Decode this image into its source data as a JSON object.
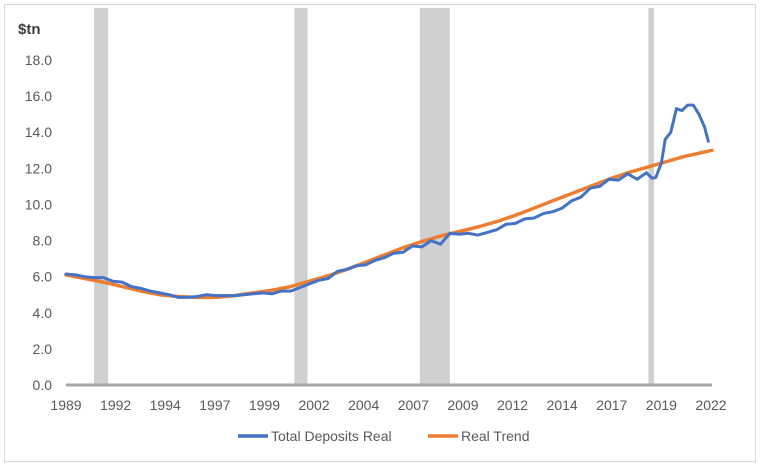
{
  "chart_data": {
    "type": "line",
    "ylabel": "$tn",
    "ylim": [
      0,
      18
    ],
    "yticks": [
      "0.0",
      "2.0",
      "4.0",
      "6.0",
      "8.0",
      "10.0",
      "12.0",
      "14.0",
      "16.0",
      "18.0"
    ],
    "xlim": [
      1989.0,
      2023.5
    ],
    "xticks": [
      "1989",
      "1992",
      "1994",
      "1997",
      "1999",
      "2002",
      "2004",
      "2007",
      "2009",
      "2012",
      "2014",
      "2017",
      "2019",
      "2022"
    ],
    "grid": false,
    "legend_position": "bottom",
    "recessions": [
      [
        1990.5,
        1991.25
      ],
      [
        2001.2,
        2001.9
      ],
      [
        2007.9,
        2009.5
      ],
      [
        2020.1,
        2020.4
      ]
    ],
    "series": [
      {
        "name": "Total Deposits Real",
        "color": "#4472C4",
        "points": [
          [
            1989.0,
            6.15
          ],
          [
            1989.5,
            6.1
          ],
          [
            1990.0,
            6.0
          ],
          [
            1990.5,
            5.95
          ],
          [
            1991.0,
            5.95
          ],
          [
            1991.5,
            5.75
          ],
          [
            1992.0,
            5.7
          ],
          [
            1992.5,
            5.45
          ],
          [
            1993.0,
            5.35
          ],
          [
            1993.5,
            5.2
          ],
          [
            1994.0,
            5.1
          ],
          [
            1994.5,
            5.0
          ],
          [
            1995.0,
            4.85
          ],
          [
            1995.5,
            4.85
          ],
          [
            1996.0,
            4.9
          ],
          [
            1996.5,
            5.0
          ],
          [
            1997.0,
            4.95
          ],
          [
            1997.5,
            4.95
          ],
          [
            1998.0,
            4.95
          ],
          [
            1998.5,
            5.0
          ],
          [
            1999.0,
            5.05
          ],
          [
            1999.5,
            5.1
          ],
          [
            2000.0,
            5.05
          ],
          [
            2000.5,
            5.2
          ],
          [
            2001.0,
            5.2
          ],
          [
            2001.5,
            5.4
          ],
          [
            2002.0,
            5.6
          ],
          [
            2002.5,
            5.8
          ],
          [
            2003.0,
            5.9
          ],
          [
            2003.5,
            6.3
          ],
          [
            2004.0,
            6.4
          ],
          [
            2004.5,
            6.6
          ],
          [
            2005.0,
            6.65
          ],
          [
            2005.5,
            6.9
          ],
          [
            2006.0,
            7.05
          ],
          [
            2006.5,
            7.3
          ],
          [
            2007.0,
            7.35
          ],
          [
            2007.5,
            7.7
          ],
          [
            2008.0,
            7.65
          ],
          [
            2008.5,
            8.0
          ],
          [
            2009.0,
            7.8
          ],
          [
            2009.5,
            8.4
          ],
          [
            2010.0,
            8.35
          ],
          [
            2010.5,
            8.4
          ],
          [
            2011.0,
            8.3
          ],
          [
            2011.5,
            8.45
          ],
          [
            2012.0,
            8.6
          ],
          [
            2012.5,
            8.9
          ],
          [
            2013.0,
            8.95
          ],
          [
            2013.5,
            9.2
          ],
          [
            2014.0,
            9.25
          ],
          [
            2014.5,
            9.5
          ],
          [
            2015.0,
            9.6
          ],
          [
            2015.5,
            9.8
          ],
          [
            2016.0,
            10.2
          ],
          [
            2016.5,
            10.4
          ],
          [
            2017.0,
            10.9
          ],
          [
            2017.5,
            11.0
          ],
          [
            2018.0,
            11.4
          ],
          [
            2018.5,
            11.35
          ],
          [
            2019.0,
            11.7
          ],
          [
            2019.5,
            11.4
          ],
          [
            2020.0,
            11.75
          ],
          [
            2020.3,
            11.45
          ],
          [
            2020.5,
            11.5
          ],
          [
            2020.8,
            12.3
          ],
          [
            2021.0,
            13.6
          ],
          [
            2021.3,
            14.0
          ],
          [
            2021.6,
            15.3
          ],
          [
            2021.9,
            15.2
          ],
          [
            2022.2,
            15.5
          ],
          [
            2022.5,
            15.5
          ],
          [
            2022.8,
            15.0
          ],
          [
            2023.1,
            14.3
          ],
          [
            2023.3,
            13.5
          ]
        ]
      },
      {
        "name": "Real Trend",
        "color": "#ED7D31",
        "points": [
          [
            1989.0,
            6.1
          ],
          [
            1990.0,
            5.9
          ],
          [
            1991.0,
            5.7
          ],
          [
            1992.0,
            5.45
          ],
          [
            1993.0,
            5.2
          ],
          [
            1994.0,
            5.0
          ],
          [
            1995.0,
            4.9
          ],
          [
            1996.0,
            4.85
          ],
          [
            1997.0,
            4.85
          ],
          [
            1998.0,
            4.95
          ],
          [
            1999.0,
            5.1
          ],
          [
            2000.0,
            5.25
          ],
          [
            2001.0,
            5.45
          ],
          [
            2002.0,
            5.75
          ],
          [
            2003.0,
            6.05
          ],
          [
            2004.0,
            6.4
          ],
          [
            2005.0,
            6.8
          ],
          [
            2006.0,
            7.2
          ],
          [
            2007.0,
            7.6
          ],
          [
            2008.0,
            7.95
          ],
          [
            2009.0,
            8.25
          ],
          [
            2010.0,
            8.5
          ],
          [
            2011.0,
            8.75
          ],
          [
            2012.0,
            9.05
          ],
          [
            2013.0,
            9.4
          ],
          [
            2014.0,
            9.8
          ],
          [
            2015.0,
            10.2
          ],
          [
            2016.0,
            10.6
          ],
          [
            2017.0,
            11.0
          ],
          [
            2018.0,
            11.4
          ],
          [
            2019.0,
            11.75
          ],
          [
            2020.0,
            12.05
          ],
          [
            2021.0,
            12.35
          ],
          [
            2022.0,
            12.65
          ],
          [
            2023.5,
            13.0
          ]
        ]
      }
    ]
  }
}
